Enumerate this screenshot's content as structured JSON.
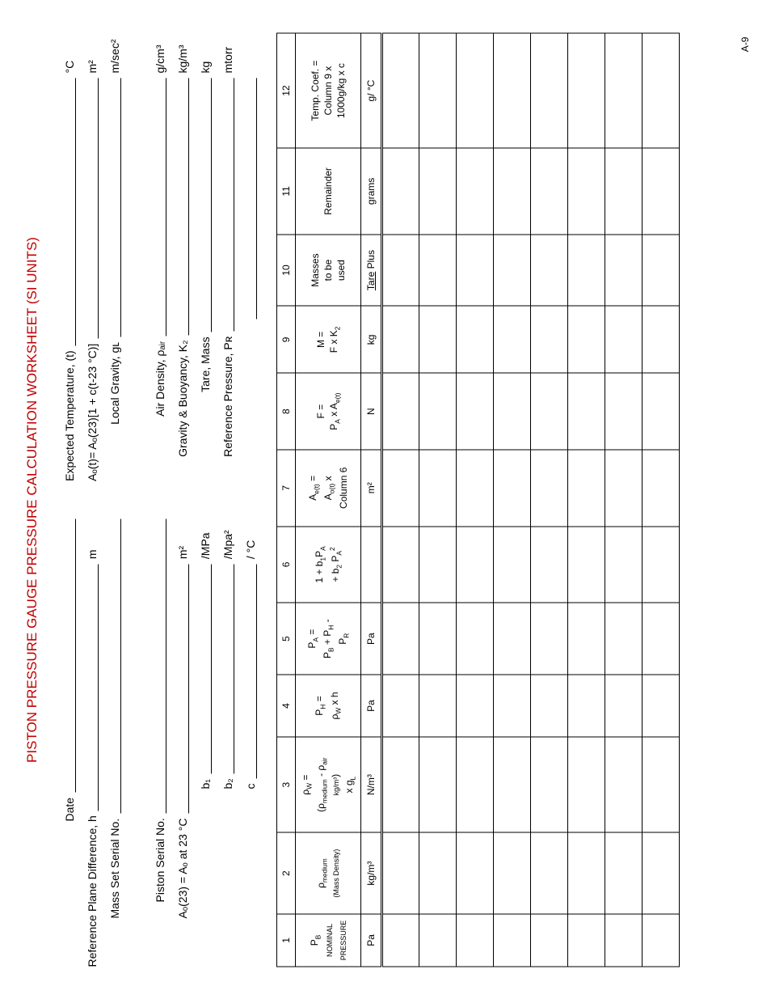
{
  "title": "PISTON PRESSURE GAUGE PRESSURE CALCULATION WORKSHEET (SI UNITS)",
  "left": {
    "date": "Date",
    "refPlane": "Reference Plane Difference, h",
    "refPlane_u": "m",
    "massSet": "Mass Set Serial No.",
    "piston": "Piston Serial No.",
    "ao23": "Aₒ(23) = Aₒ at 23 °C",
    "ao23_u": "m²",
    "b1": "b₁",
    "b1_u": "/MPa",
    "b2": "b₂",
    "b2_u": "/Mpa²",
    "c": "c",
    "c_u": "/ °C"
  },
  "right": {
    "expT": "Expected Temperature, (t)",
    "expT_u": "°C",
    "aot": "Aₒ(t)= Aₒ(23)[1 + c(t-23 °C)]",
    "aot_u": "m²",
    "gL": "Local Gravity, gʟ",
    "gL_u": "m/sec²",
    "airD": "Air Density, ρₐᵢᵣ",
    "airD_u": "g/cm³",
    "gb": "Gravity & Buoyancy, K₂",
    "gb_u": "kg/m³",
    "tare": "Tare, Mass",
    "tare_u": "kg",
    "refP": "Reference Pressure, Pʀ",
    "refP_u": "mtorr"
  },
  "cols": [
    "1",
    "2",
    "3",
    "4",
    "5",
    "6",
    "7",
    "8",
    "9",
    "10",
    "11",
    "12"
  ],
  "hdr": {
    "c1": "P<sub>B</sub><br><span style='font-size:9px'>NOMINAL<br>PRESSURE</span>",
    "c2": "ρ<sub>medium</sub><br><span style='font-size:9px'>(Mass Density)</span>",
    "c3": "ρ<sub>W</sub> =<br>(ρ<sub>medium</sub> - ρ<sub>air</sub><br><span style='font-size:9px'>kg/m³</span>)<br>x g<sub>L</sub>",
    "c4": "P<sub>H</sub> =<br>ρ<sub>W</sub> x h",
    "c5": "P<sub>A</sub> =<br>P<sub>B</sub> + P<sub>H</sub> -<br>P<sub>R</sub>",
    "c6": "1 + b<sub>1</sub>P<sub>A</sub><br>+ b<sub>2</sub> P<sub>A</sub><sup>2</sup>",
    "c7": "A<sub>e(t)</sub> =<br>A<sub>o(t)</sub> x<br>Column 6",
    "c8": "F =<br>P<sub>A</sub> x A<sub>e(t)</sub>",
    "c9": "M =<br>F x K<sub>2</sub>",
    "c10": "Masses<br>to be<br>used",
    "c11": "Remainder",
    "c12": "Temp. Coef. =<br>Column 9 x<br>1000g/kg x c"
  },
  "units": {
    "c1": "Pa",
    "c2": "kg/m³",
    "c3": "N/m³",
    "c4": "Pa",
    "c5": "Pa",
    "c6": "",
    "c7": "m²",
    "c8": "N",
    "c9": "kg",
    "c10": "<u>Tare</u> Plus",
    "c11": "grams",
    "c12": "g/ °C"
  },
  "pageNum": "A-9"
}
